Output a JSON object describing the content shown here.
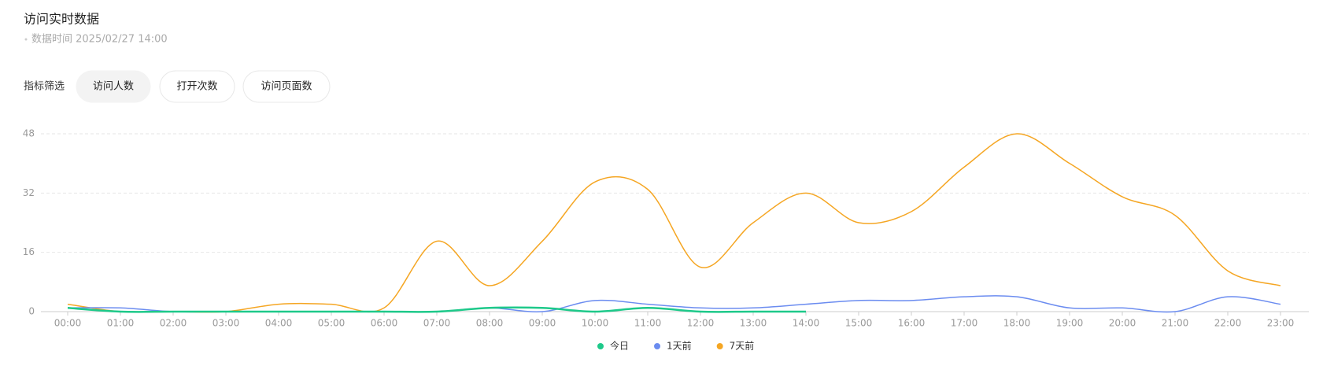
{
  "header": {
    "title": "访问实时数据",
    "subtitle": "数据时间 2025/02/27 14:00"
  },
  "filter": {
    "label": "指标筛选",
    "options": [
      "访问人数",
      "打开次数",
      "访问页面数"
    ],
    "selected": 0
  },
  "chart_data": {
    "type": "line",
    "categories": [
      "00:00",
      "01:00",
      "02:00",
      "03:00",
      "04:00",
      "05:00",
      "06:00",
      "07:00",
      "08:00",
      "09:00",
      "10:00",
      "11:00",
      "12:00",
      "13:00",
      "14:00",
      "15:00",
      "16:00",
      "17:00",
      "18:00",
      "19:00",
      "20:00",
      "21:00",
      "22:00",
      "23:00"
    ],
    "series": [
      {
        "name": "今日",
        "color": "#1ec98a",
        "values": [
          1,
          0,
          0,
          0,
          0,
          0,
          0,
          0,
          1,
          1,
          0,
          1,
          0,
          0,
          0,
          null,
          null,
          null,
          null,
          null,
          null,
          null,
          null,
          null
        ]
      },
      {
        "name": "1天前",
        "color": "#6b8cf0",
        "values": [
          1,
          1,
          0,
          0,
          0,
          0,
          0,
          0,
          1,
          0,
          3,
          2,
          1,
          1,
          2,
          3,
          3,
          4,
          4,
          1,
          1,
          0,
          4,
          2
        ]
      },
      {
        "name": "7天前",
        "color": "#f5a623",
        "values": [
          2,
          0,
          0,
          0,
          2,
          2,
          1,
          19,
          7,
          19,
          35,
          33,
          12,
          24,
          32,
          24,
          27,
          39,
          48,
          40,
          31,
          26,
          11,
          7
        ]
      }
    ],
    "ylim": [
      0,
      48
    ],
    "yticks": [
      0,
      16,
      32,
      48
    ],
    "grid": true,
    "legend": "bottom"
  }
}
